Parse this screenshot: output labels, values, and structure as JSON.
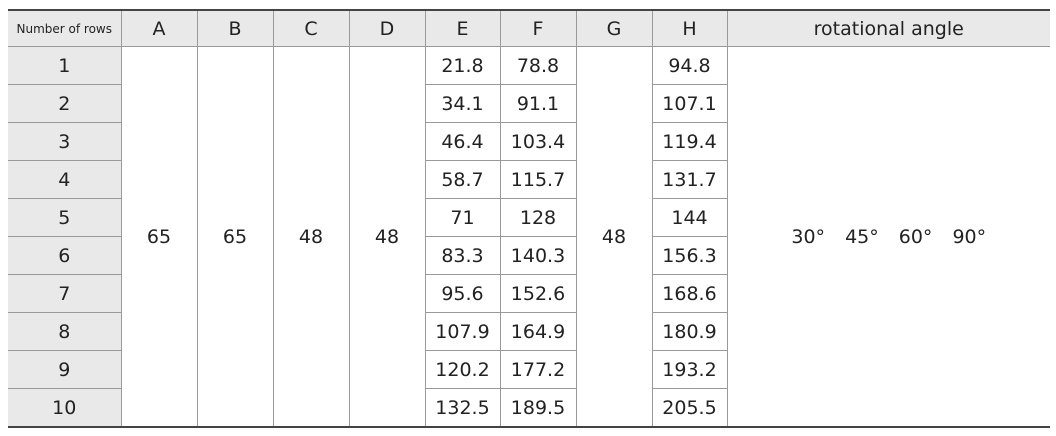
{
  "table": {
    "header": [
      "Number of rows",
      "A",
      "B",
      "C",
      "D",
      "E",
      "F",
      "G",
      "H",
      "rotational angle"
    ],
    "rows": [
      {
        "label": "1",
        "E": "21.8",
        "F": "78.8",
        "H": "94.8"
      },
      {
        "label": "2",
        "E": "34.1",
        "F": "91.1",
        "H": "107.1"
      },
      {
        "label": "3",
        "E": "46.4",
        "F": "103.4",
        "H": "119.4"
      },
      {
        "label": "4",
        "E": "58.7",
        "F": "115.7",
        "H": "131.7"
      },
      {
        "label": "5",
        "E": "71",
        "F": "128",
        "H": "144"
      },
      {
        "label": "6",
        "E": "83.3",
        "F": "140.3",
        "H": "156.3"
      },
      {
        "label": "7",
        "E": "95.6",
        "F": "152.6",
        "H": "168.6"
      },
      {
        "label": "8",
        "E": "107.9",
        "F": "164.9",
        "H": "180.9"
      },
      {
        "label": "9",
        "E": "120.2",
        "F": "177.2",
        "H": "193.2"
      },
      {
        "label": "10",
        "E": "132.5",
        "F": "189.5",
        "H": "205.5"
      }
    ],
    "spanning": {
      "A": "65",
      "B": "65",
      "C": "48",
      "D": "48",
      "G": "48"
    },
    "angles": [
      "30°",
      "45°",
      "60°",
      "90°"
    ]
  }
}
